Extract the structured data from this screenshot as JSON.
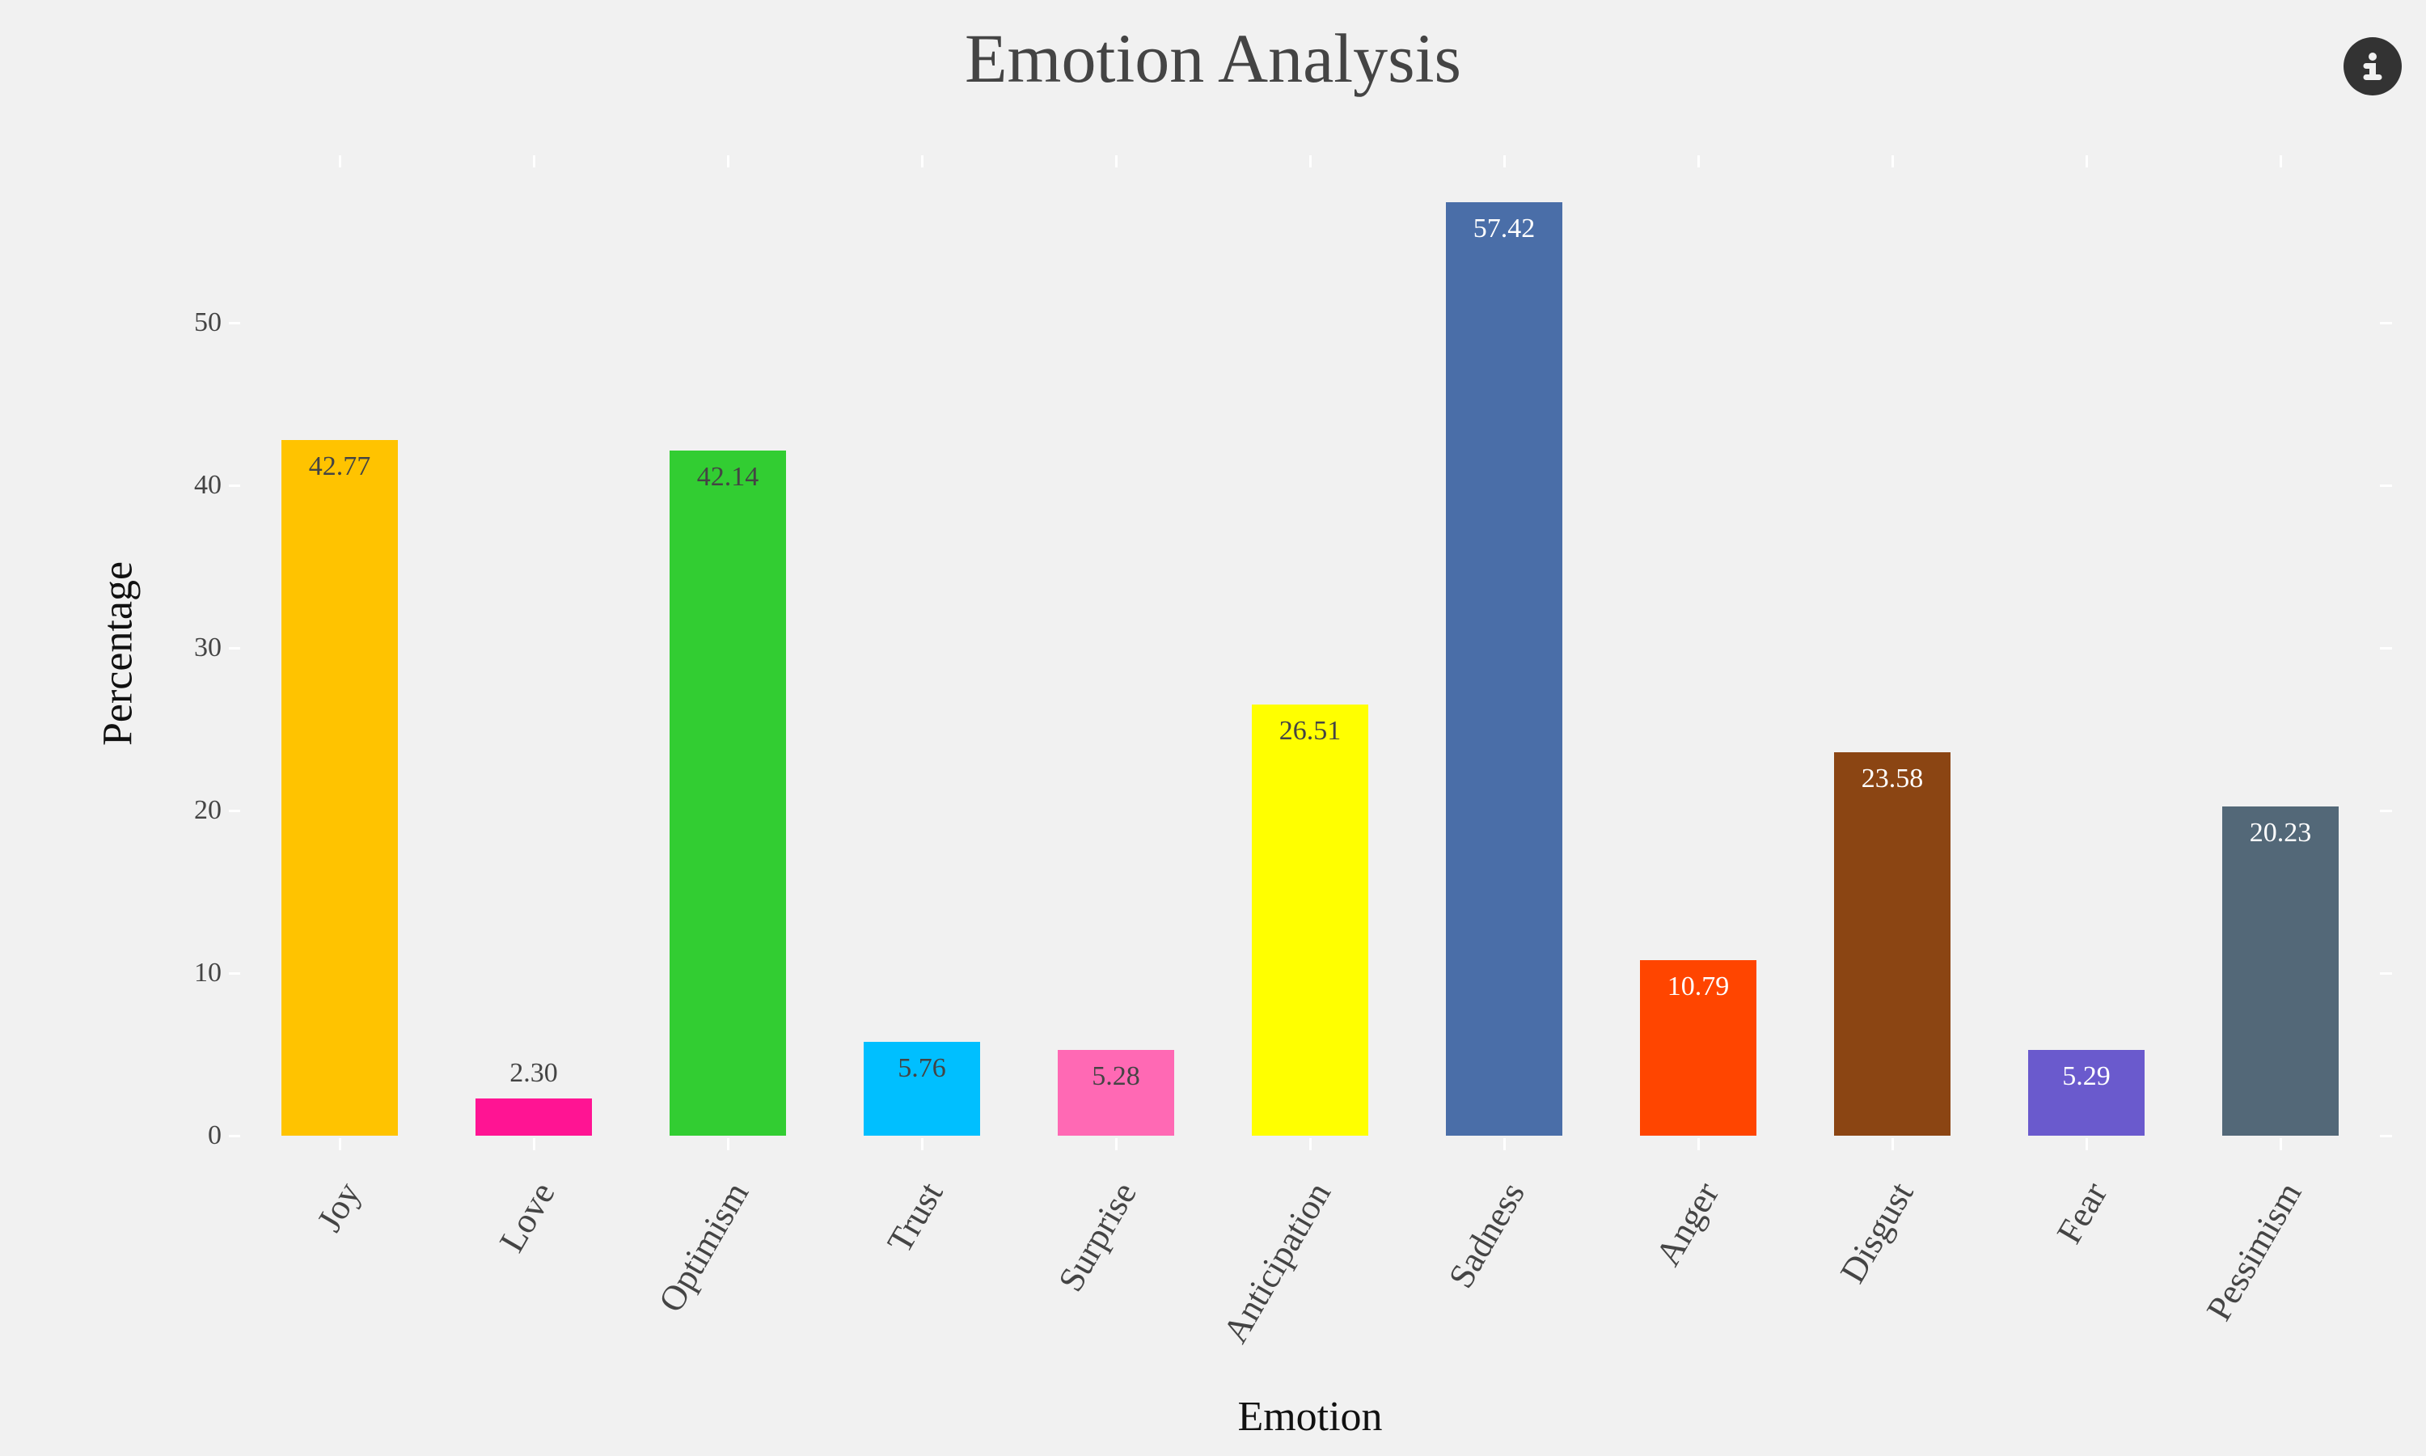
{
  "header": {
    "title": "Emotion Analysis",
    "info_icon": "info-circle-icon"
  },
  "chart_data": {
    "type": "bar",
    "title": "Emotion Analysis",
    "xlabel": "Emotion",
    "ylabel": "Percentage",
    "ylim": [
      0,
      60
    ],
    "yticks": [
      "0",
      "10",
      "20",
      "30",
      "40",
      "50"
    ],
    "grid": false,
    "legend": null,
    "categories": [
      "Joy",
      "Love",
      "Optimism",
      "Trust",
      "Surprise",
      "Anticipation",
      "Sadness",
      "Anger",
      "Disgust",
      "Fear",
      "Pessimism"
    ],
    "values": [
      42.77,
      2.3,
      42.14,
      5.76,
      5.28,
      26.51,
      57.42,
      10.79,
      23.58,
      5.29,
      20.23
    ],
    "value_labels": [
      "42.77",
      "2.30",
      "42.14",
      "5.76",
      "5.28",
      "26.51",
      "57.42",
      "10.79",
      "23.58",
      "5.29",
      "20.23"
    ],
    "colors": [
      "#FFC300",
      "#FF1493",
      "#32CD32",
      "#00BFFF",
      "#FF69B4",
      "#FFFF00",
      "#4A6EA8",
      "#FF4500",
      "#8B4513",
      "#6A5ACD",
      "#536878"
    ],
    "label_colors": [
      "#444444",
      "#444444",
      "#444444",
      "#444444",
      "#444444",
      "#444444",
      "#FFFFFF",
      "#FFFFFF",
      "#FFFFFF",
      "#FFFFFF",
      "#FFFFFF"
    ]
  }
}
